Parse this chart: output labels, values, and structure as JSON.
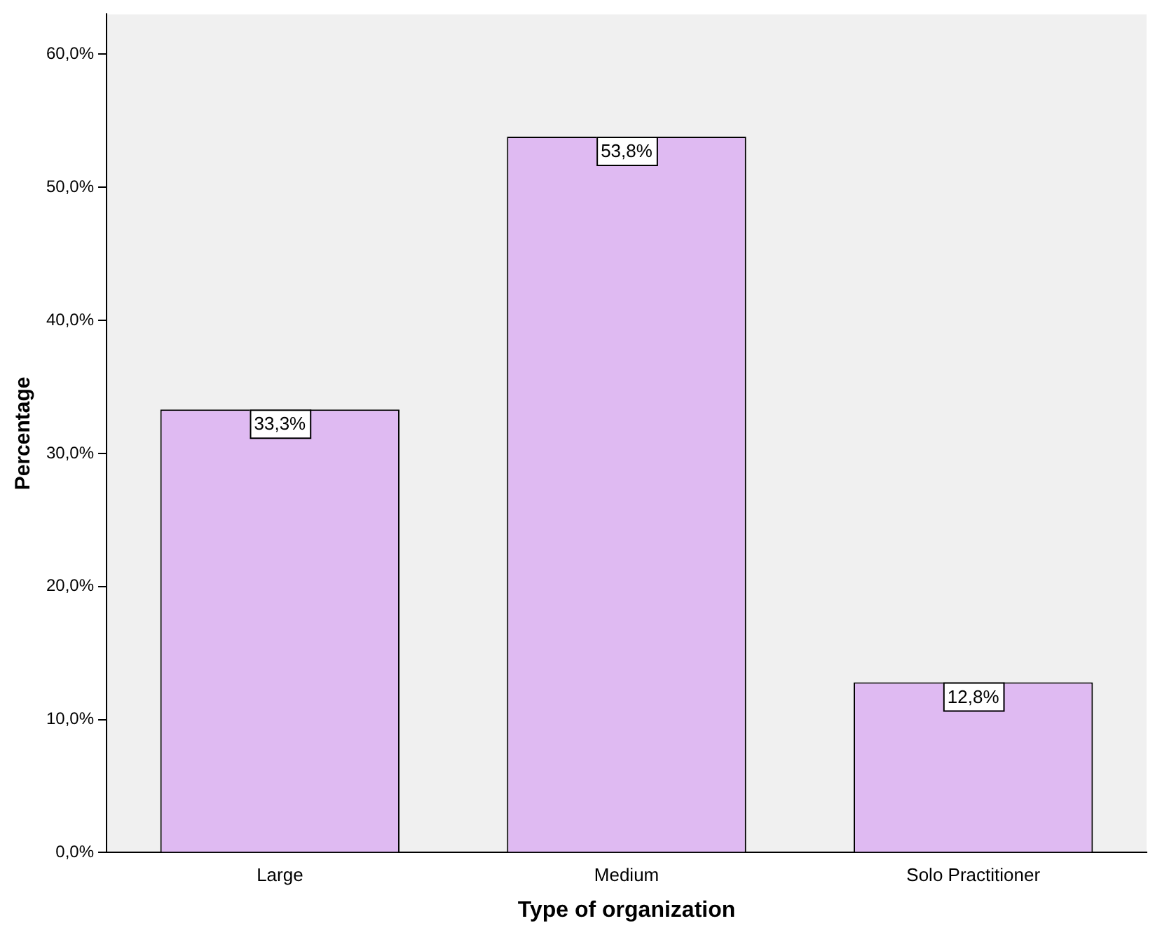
{
  "chart_data": {
    "type": "bar",
    "xlabel": "Type of organization",
    "ylabel": "Percentage",
    "categories": [
      "Large",
      "Medium",
      "Solo Practitioner"
    ],
    "values": [
      33.3,
      53.8,
      12.8
    ],
    "color": "#dfbaf2",
    "value_labels": [
      "33,3%",
      "53,8%",
      "12,8%"
    ],
    "ylim": [
      0,
      63
    ],
    "yticks": [
      {
        "value": 0,
        "label": "0,0%"
      },
      {
        "value": 10,
        "label": "10,0%"
      },
      {
        "value": 20,
        "label": "20,0%"
      },
      {
        "value": 30,
        "label": "30,0%"
      },
      {
        "value": 40,
        "label": "40,0%"
      },
      {
        "value": 50,
        "label": "50,0%"
      },
      {
        "value": 60,
        "label": "60,0%"
      }
    ],
    "grid": false,
    "legend": false
  }
}
